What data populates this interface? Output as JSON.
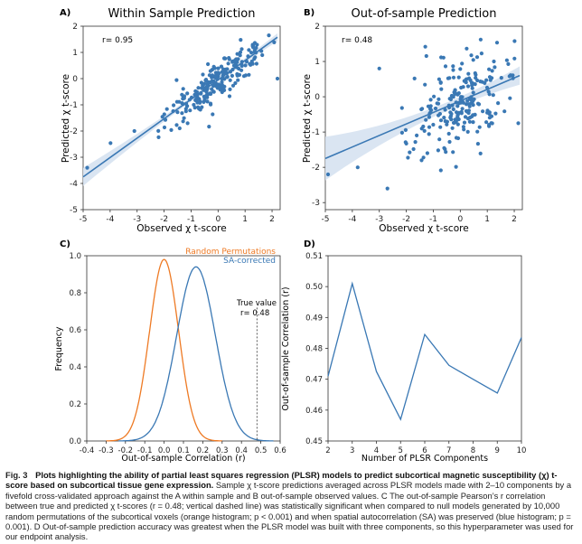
{
  "colors": {
    "blue": "#3a78b4",
    "orange": "#ee7a24",
    "band": "#d6e2f1",
    "axis": "#333333"
  },
  "panels": [
    {
      "label": "A)"
    },
    {
      "label": "B)"
    },
    {
      "label": "C)"
    },
    {
      "label": "D)"
    }
  ],
  "chart_data": [
    {
      "type": "scatter",
      "title": "Within Sample Prediction",
      "xlabel": "Observed χ t-score",
      "ylabel": "Predicted χ t-score",
      "annotation": "r= 0.95",
      "xlim": [
        -5,
        2.3
      ],
      "ylim": [
        -5,
        2
      ],
      "xticks": [
        -5,
        -4,
        -3,
        -2,
        -1,
        0,
        1,
        2
      ],
      "yticks": [
        -5,
        -4,
        -3,
        -2,
        -1,
        0,
        1,
        2
      ],
      "fit_line": {
        "x": [
          -5,
          2.2
        ],
        "y": [
          -3.75,
          1.58
        ]
      },
      "n_points": 220,
      "corr": 0.95,
      "points": []
    },
    {
      "type": "scatter",
      "title": "Out-of-sample Prediction",
      "xlabel": "Observed χ t-score",
      "ylabel": "Predicted χ t-score",
      "annotation": "r= 0.48",
      "xlim": [
        -5,
        2.3
      ],
      "ylim": [
        -3.2,
        2
      ],
      "xticks": [
        -5,
        -4,
        -3,
        -2,
        -1,
        0,
        1,
        2
      ],
      "yticks": [
        -3,
        -2,
        -1,
        0,
        1,
        2
      ],
      "fit_line": {
        "x": [
          -5,
          2.2
        ],
        "y": [
          -1.75,
          0.6
        ]
      },
      "n_points": 220,
      "corr": 0.48,
      "points": []
    },
    {
      "type": "line",
      "xlabel": "Out-of-sample Correlation (r)",
      "ylabel": "Frequency",
      "xlim": [
        -0.4,
        0.6
      ],
      "ylim": [
        0,
        1.0
      ],
      "xticks": [
        -0.4,
        -0.3,
        -0.2,
        -0.1,
        0.0,
        0.1,
        0.2,
        0.3,
        0.4,
        0.5,
        0.6
      ],
      "yticks": [
        0.0,
        0.2,
        0.4,
        0.6,
        0.8,
        1.0
      ],
      "series": [
        {
          "name": "Random Permutations",
          "mean": 0.0,
          "sd": 0.075,
          "peak": 0.98,
          "color": "orange"
        },
        {
          "name": "SA-corrected",
          "mean": 0.165,
          "sd": 0.1,
          "peak": 0.94,
          "color": "blue"
        }
      ],
      "vline": {
        "x": 0.48,
        "label_line1": "True value",
        "label_line2": "r= 0.48"
      }
    },
    {
      "type": "line",
      "xlabel": "Number of PLSR Components",
      "ylabel": "Out-of-sample Correlation (r)",
      "xlim": [
        2,
        10
      ],
      "ylim": [
        0.45,
        0.51
      ],
      "xticks": [
        2,
        3,
        4,
        5,
        6,
        7,
        8,
        9,
        10
      ],
      "yticks": [
        0.45,
        0.46,
        0.47,
        0.48,
        0.49,
        0.5,
        0.51
      ],
      "x": [
        2,
        3,
        4,
        5,
        6,
        7,
        8,
        9,
        10
      ],
      "y": [
        0.471,
        0.501,
        0.4725,
        0.457,
        0.4845,
        0.4745,
        0.47,
        0.4655,
        0.4835
      ]
    }
  ],
  "caption": {
    "fig_label": "Fig. 3",
    "bold_text": "Plots highlighting the ability of partial least squares regression (PLSR) models to predict subcortical magnetic susceptibility (χ) t-score based on subcortical tissue gene expression.",
    "body_text": "Sample χ t-score predictions averaged across PLSR models made with 2–10 components by a fivefold cross-validated approach against the A within sample and B out-of-sample observed values. C The out-of-sample Pearson’s r correlation between true and predicted χ t-scores (r = 0.48; vertical dashed line) was statistically significant when compared to null models generated by 10,000 random permutations of the subcortical voxels (orange histogram; p < 0.001) and when spatial autocorrelation (SA) was preserved (blue histogram; p = 0.001). D Out-of-sample prediction accuracy was greatest when the PLSR model was built with three components, so this hyperparameter was used for our endpoint analysis."
  }
}
